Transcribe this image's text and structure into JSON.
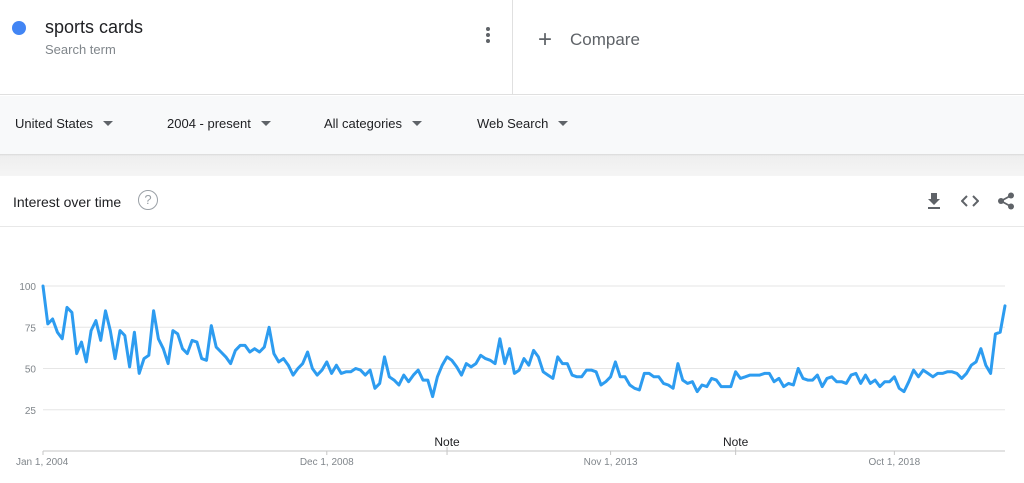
{
  "term": {
    "name": "sports cards",
    "subtitle": "Search term",
    "color": "#4285f4",
    "more_icon": "more-vert-icon"
  },
  "compare": {
    "label": "Compare",
    "icon": "plus-icon"
  },
  "filters": {
    "region": "United States",
    "time": "2004 - present",
    "category": "All categories",
    "property": "Web Search"
  },
  "section": {
    "title": "Interest over time",
    "help_icon": "help-icon",
    "actions": [
      "download-icon",
      "embed-icon",
      "share-icon"
    ]
  },
  "chart_data": {
    "type": "line",
    "title": "",
    "xlabel": "",
    "ylabel": "",
    "ylim": [
      0,
      100
    ],
    "yticks": [
      25,
      50,
      75,
      100
    ],
    "grid": true,
    "legend": "none",
    "x_range": [
      "2004-01",
      "2020-09"
    ],
    "x_ticks": [
      {
        "date": "2004-01",
        "label": "Jan 1, 2004"
      },
      {
        "date": "2008-12",
        "label": "Dec 1, 2008"
      },
      {
        "date": "2013-11",
        "label": "Nov 1, 2013"
      },
      {
        "date": "2018-10",
        "label": "Oct 1, 2018"
      }
    ],
    "notes": [
      {
        "date": "2011-01",
        "label": "Note"
      },
      {
        "date": "2016-01",
        "label": "Note"
      }
    ],
    "series": [
      {
        "name": "sports cards",
        "color": "#2d9cf0",
        "points": [
          [
            "2004-01",
            100
          ],
          [
            "2004-02",
            77
          ],
          [
            "2004-03",
            80
          ],
          [
            "2004-04",
            72
          ],
          [
            "2004-05",
            68
          ],
          [
            "2004-06",
            87
          ],
          [
            "2004-07",
            84
          ],
          [
            "2004-08",
            59
          ],
          [
            "2004-09",
            66
          ],
          [
            "2004-10",
            54
          ],
          [
            "2004-11",
            73
          ],
          [
            "2004-12",
            79
          ],
          [
            "2005-01",
            67
          ],
          [
            "2005-02",
            85
          ],
          [
            "2005-03",
            73
          ],
          [
            "2005-04",
            56
          ],
          [
            "2005-05",
            73
          ],
          [
            "2005-06",
            70
          ],
          [
            "2005-07",
            51
          ],
          [
            "2005-08",
            72
          ],
          [
            "2005-09",
            47
          ],
          [
            "2005-10",
            56
          ],
          [
            "2005-11",
            58
          ],
          [
            "2005-12",
            85
          ],
          [
            "2006-01",
            68
          ],
          [
            "2006-02",
            62
          ],
          [
            "2006-03",
            53
          ],
          [
            "2006-04",
            73
          ],
          [
            "2006-05",
            71
          ],
          [
            "2006-06",
            62
          ],
          [
            "2006-07",
            59
          ],
          [
            "2006-08",
            67
          ],
          [
            "2006-09",
            66
          ],
          [
            "2006-10",
            56
          ],
          [
            "2006-11",
            55
          ],
          [
            "2006-12",
            76
          ],
          [
            "2007-01",
            63
          ],
          [
            "2007-02",
            60
          ],
          [
            "2007-03",
            57
          ],
          [
            "2007-04",
            53
          ],
          [
            "2007-05",
            61
          ],
          [
            "2007-06",
            64
          ],
          [
            "2007-07",
            64
          ],
          [
            "2007-08",
            60
          ],
          [
            "2007-09",
            62
          ],
          [
            "2007-10",
            60
          ],
          [
            "2007-11",
            63
          ],
          [
            "2007-12",
            75
          ],
          [
            "2008-01",
            59
          ],
          [
            "2008-02",
            54
          ],
          [
            "2008-03",
            56
          ],
          [
            "2008-04",
            52
          ],
          [
            "2008-05",
            46
          ],
          [
            "2008-06",
            50
          ],
          [
            "2008-07",
            53
          ],
          [
            "2008-08",
            60
          ],
          [
            "2008-09",
            50
          ],
          [
            "2008-10",
            46
          ],
          [
            "2008-11",
            49
          ],
          [
            "2008-12",
            54
          ],
          [
            "2009-01",
            47
          ],
          [
            "2009-02",
            52
          ],
          [
            "2009-03",
            47
          ],
          [
            "2009-04",
            48
          ],
          [
            "2009-05",
            48
          ],
          [
            "2009-06",
            50
          ],
          [
            "2009-07",
            49
          ],
          [
            "2009-08",
            46
          ],
          [
            "2009-09",
            49
          ],
          [
            "2009-10",
            38
          ],
          [
            "2009-11",
            41
          ],
          [
            "2009-12",
            57
          ],
          [
            "2010-01",
            45
          ],
          [
            "2010-02",
            43
          ],
          [
            "2010-03",
            40
          ],
          [
            "2010-04",
            46
          ],
          [
            "2010-05",
            42
          ],
          [
            "2010-06",
            46
          ],
          [
            "2010-07",
            49
          ],
          [
            "2010-08",
            43
          ],
          [
            "2010-09",
            43
          ],
          [
            "2010-10",
            33
          ],
          [
            "2010-11",
            45
          ],
          [
            "2010-12",
            52
          ],
          [
            "2011-01",
            57
          ],
          [
            "2011-02",
            55
          ],
          [
            "2011-03",
            51
          ],
          [
            "2011-04",
            46
          ],
          [
            "2011-05",
            53
          ],
          [
            "2011-06",
            51
          ],
          [
            "2011-07",
            53
          ],
          [
            "2011-08",
            58
          ],
          [
            "2011-09",
            56
          ],
          [
            "2011-10",
            55
          ],
          [
            "2011-11",
            53
          ],
          [
            "2011-12",
            68
          ],
          [
            "2012-01",
            53
          ],
          [
            "2012-02",
            62
          ],
          [
            "2012-03",
            47
          ],
          [
            "2012-04",
            49
          ],
          [
            "2012-05",
            56
          ],
          [
            "2012-06",
            52
          ],
          [
            "2012-07",
            61
          ],
          [
            "2012-08",
            57
          ],
          [
            "2012-09",
            48
          ],
          [
            "2012-10",
            46
          ],
          [
            "2012-11",
            44
          ],
          [
            "2012-12",
            57
          ],
          [
            "2013-01",
            53
          ],
          [
            "2013-02",
            53
          ],
          [
            "2013-03",
            46
          ],
          [
            "2013-04",
            45
          ],
          [
            "2013-05",
            45
          ],
          [
            "2013-06",
            49
          ],
          [
            "2013-07",
            49
          ],
          [
            "2013-08",
            48
          ],
          [
            "2013-09",
            40
          ],
          [
            "2013-10",
            42
          ],
          [
            "2013-11",
            45
          ],
          [
            "2013-12",
            54
          ],
          [
            "2014-01",
            45
          ],
          [
            "2014-02",
            45
          ],
          [
            "2014-03",
            40
          ],
          [
            "2014-04",
            38
          ],
          [
            "2014-05",
            37
          ],
          [
            "2014-06",
            47
          ],
          [
            "2014-07",
            47
          ],
          [
            "2014-08",
            45
          ],
          [
            "2014-09",
            45
          ],
          [
            "2014-10",
            41
          ],
          [
            "2014-11",
            40
          ],
          [
            "2014-12",
            38
          ],
          [
            "2015-01",
            53
          ],
          [
            "2015-02",
            43
          ],
          [
            "2015-03",
            41
          ],
          [
            "2015-04",
            42
          ],
          [
            "2015-05",
            36
          ],
          [
            "2015-06",
            40
          ],
          [
            "2015-07",
            39
          ],
          [
            "2015-08",
            44
          ],
          [
            "2015-09",
            43
          ],
          [
            "2015-10",
            39
          ],
          [
            "2015-11",
            39
          ],
          [
            "2015-12",
            39
          ],
          [
            "2016-01",
            48
          ],
          [
            "2016-02",
            44
          ],
          [
            "2016-03",
            45
          ],
          [
            "2016-04",
            46
          ],
          [
            "2016-05",
            46
          ],
          [
            "2016-06",
            46
          ],
          [
            "2016-07",
            47
          ],
          [
            "2016-08",
            47
          ],
          [
            "2016-09",
            42
          ],
          [
            "2016-10",
            44
          ],
          [
            "2016-11",
            39
          ],
          [
            "2016-12",
            41
          ],
          [
            "2017-01",
            40
          ],
          [
            "2017-02",
            50
          ],
          [
            "2017-03",
            44
          ],
          [
            "2017-04",
            43
          ],
          [
            "2017-05",
            43
          ],
          [
            "2017-06",
            46
          ],
          [
            "2017-07",
            39
          ],
          [
            "2017-08",
            44
          ],
          [
            "2017-09",
            45
          ],
          [
            "2017-10",
            42
          ],
          [
            "2017-11",
            42
          ],
          [
            "2017-12",
            41
          ],
          [
            "2018-01",
            46
          ],
          [
            "2018-02",
            47
          ],
          [
            "2018-03",
            41
          ],
          [
            "2018-04",
            46
          ],
          [
            "2018-05",
            41
          ],
          [
            "2018-06",
            43
          ],
          [
            "2018-07",
            39
          ],
          [
            "2018-08",
            42
          ],
          [
            "2018-09",
            42
          ],
          [
            "2018-10",
            45
          ],
          [
            "2018-11",
            38
          ],
          [
            "2018-12",
            36
          ],
          [
            "2019-01",
            42
          ],
          [
            "2019-02",
            49
          ],
          [
            "2019-03",
            45
          ],
          [
            "2019-04",
            49
          ],
          [
            "2019-05",
            47
          ],
          [
            "2019-06",
            45
          ],
          [
            "2019-07",
            47
          ],
          [
            "2019-08",
            47
          ],
          [
            "2019-09",
            48
          ],
          [
            "2019-10",
            48
          ],
          [
            "2019-11",
            47
          ],
          [
            "2019-12",
            44
          ],
          [
            "2020-01",
            47
          ],
          [
            "2020-02",
            52
          ],
          [
            "2020-03",
            54
          ],
          [
            "2020-04",
            62
          ],
          [
            "2020-05",
            52
          ],
          [
            "2020-06",
            47
          ],
          [
            "2020-07",
            71
          ],
          [
            "2020-08",
            72
          ],
          [
            "2020-09",
            88
          ]
        ]
      }
    ]
  }
}
